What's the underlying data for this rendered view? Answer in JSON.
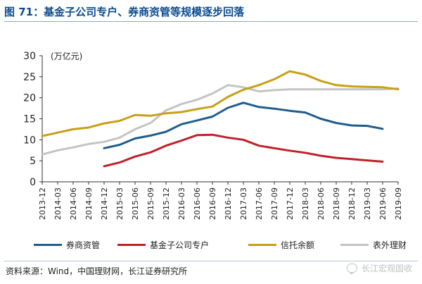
{
  "figure": {
    "title": "图 71：基金子公司专户、券商资管等规模逐步回落",
    "source": "资料来源：Wind，中国理财网，长江证券研究所",
    "watermark": "长江宏观固收"
  },
  "chart_data": {
    "type": "line",
    "ylabel": "(万亿元)",
    "ylim": [
      0,
      30
    ],
    "yticks": [
      0,
      5,
      10,
      15,
      20,
      25,
      30
    ],
    "grid": false,
    "legend_position": "bottom",
    "x_tick_labels": [
      "2013-12",
      "2014-03",
      "2014-06",
      "2014-09",
      "2014-12",
      "2015-03",
      "2015-06",
      "2015-09",
      "2015-12",
      "2016-03",
      "2016-06",
      "2016-09",
      "2016-12",
      "2017-03",
      "2017-06",
      "2017-09",
      "2017-12",
      "2018-03",
      "2018-06",
      "2018-09",
      "2018-12",
      "2019-03",
      "2019-06",
      "2019-09"
    ],
    "series": [
      {
        "name": "券商资管",
        "color": "#1f5d8c",
        "values": [
          null,
          null,
          null,
          null,
          8.0,
          8.8,
          10.3,
          11.0,
          11.9,
          13.7,
          14.6,
          15.5,
          17.6,
          18.8,
          17.8,
          17.4,
          16.9,
          16.5,
          15.0,
          14.0,
          13.4,
          13.3,
          12.6,
          null
        ]
      },
      {
        "name": "基金子公司专户",
        "color": "#c0202a",
        "values": [
          null,
          null,
          null,
          null,
          3.7,
          4.6,
          6.0,
          7.0,
          8.6,
          9.8,
          11.1,
          11.2,
          10.5,
          10.0,
          8.6,
          8.0,
          7.4,
          6.9,
          6.2,
          5.7,
          5.4,
          5.1,
          4.8,
          null
        ]
      },
      {
        "name": "信托余额",
        "color": "#c8a016",
        "values": [
          10.9,
          11.7,
          12.5,
          12.9,
          13.9,
          14.5,
          15.9,
          15.7,
          16.3,
          16.6,
          17.3,
          17.9,
          20.2,
          21.9,
          23.0,
          24.4,
          26.3,
          25.5,
          24.0,
          23.0,
          22.7,
          22.6,
          22.5,
          22.0
        ]
      },
      {
        "name": "表外理财",
        "color": "#c4c4c4",
        "values": [
          6.5,
          7.5,
          8.2,
          9.0,
          9.5,
          10.5,
          12.5,
          14.0,
          17.0,
          18.5,
          19.5,
          21.0,
          23.0,
          22.5,
          21.5,
          21.8,
          22.0,
          22.0,
          22.0,
          22.0,
          22.0,
          22.0,
          22.0,
          22.2
        ]
      }
    ]
  }
}
